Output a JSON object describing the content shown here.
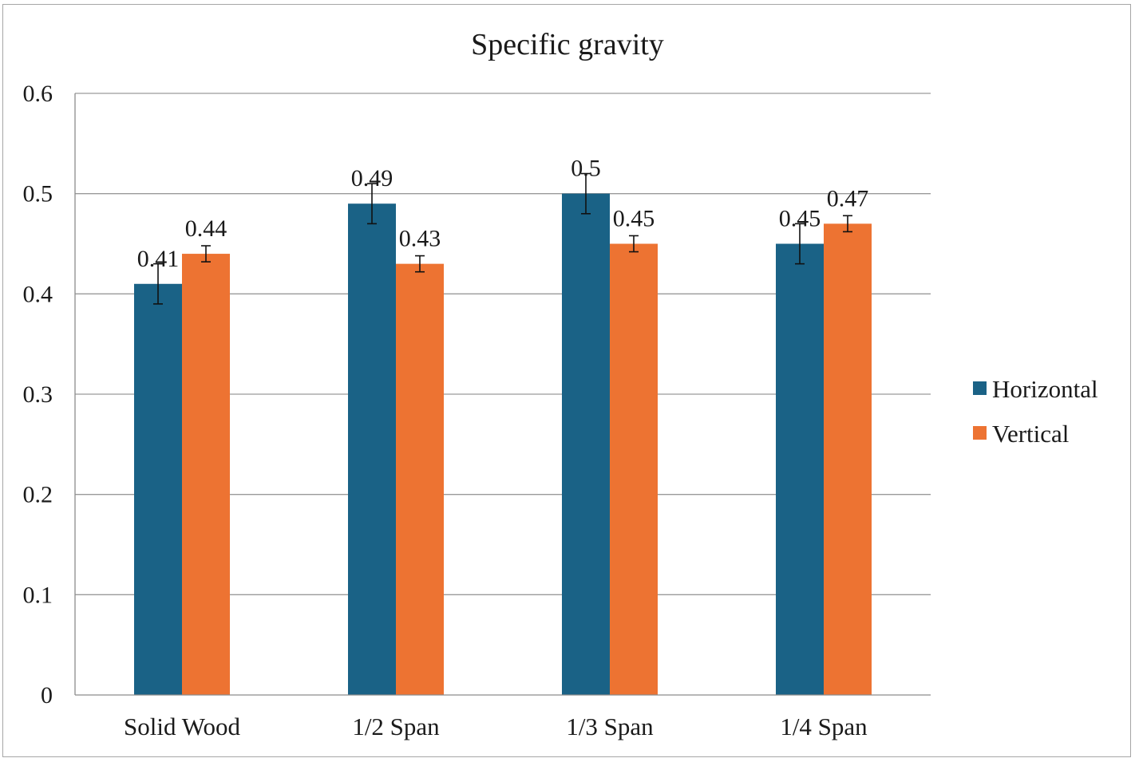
{
  "chart_data": {
    "type": "bar",
    "title": "Specific gravity",
    "xlabel": "",
    "ylabel": "",
    "categories": [
      "Solid Wood",
      "1/2 Span",
      "1/3 Span",
      "1/4 Span"
    ],
    "series": [
      {
        "name": "Horizontal",
        "color": "#1a6286",
        "values": [
          0.41,
          0.49,
          0.5,
          0.45
        ],
        "error": [
          0.02,
          0.02,
          0.02,
          0.02
        ],
        "data_labels": [
          "0.41",
          "0.49",
          "0.5",
          "0.45"
        ]
      },
      {
        "name": "Vertical",
        "color": "#ed7332",
        "values": [
          0.44,
          0.43,
          0.45,
          0.47
        ],
        "error": [
          0.008,
          0.008,
          0.008,
          0.008
        ],
        "data_labels": [
          "0.44",
          "0.43",
          "0.45",
          "0.47"
        ]
      }
    ],
    "ylim": [
      0,
      0.6
    ],
    "yticks": [
      "0",
      "0.1",
      "0.2",
      "0.3",
      "0.4",
      "0.5",
      "0.6"
    ],
    "ytick_values": [
      0,
      0.1,
      0.2,
      0.3,
      0.4,
      0.5,
      0.6
    ],
    "grid": true,
    "legend_position": "right"
  }
}
